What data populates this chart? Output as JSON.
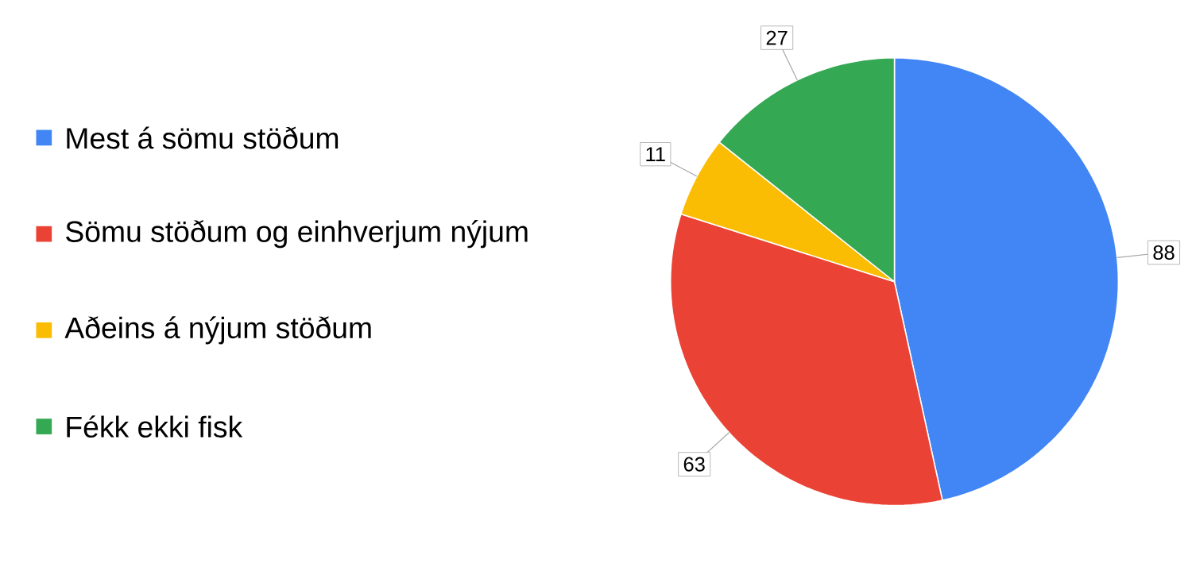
{
  "chart_data": {
    "type": "pie",
    "categories": [
      "Mest á sömu stöðum",
      "Sömu stöðum og einhverjum nýjum",
      "Aðeins á nýjum stöðum",
      "Fékk ekki fisk"
    ],
    "values": [
      88,
      63,
      11,
      27
    ],
    "colors": [
      "#4285f4",
      "#ea4335",
      "#fbbc04",
      "#34a853"
    ],
    "data_labels": true,
    "legend": "left"
  }
}
